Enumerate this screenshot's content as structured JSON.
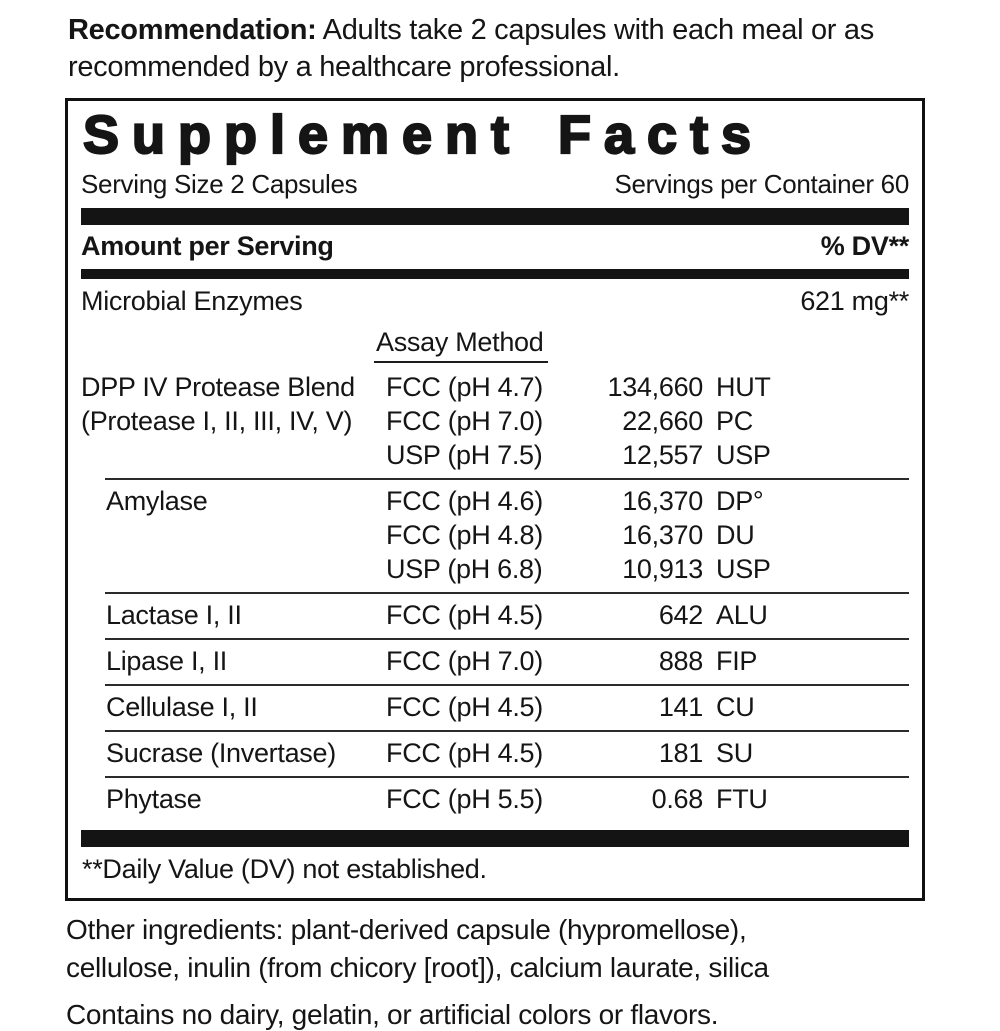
{
  "recommendation": {
    "label": "Recommendation:",
    "text": "Adults take 2 capsules with each meal or as\nrecommended by a healthcare professional."
  },
  "panel": {
    "title": "Supplement Facts",
    "serving_size": "Serving Size 2 Capsules",
    "servings_per_container": "Servings per Container 60",
    "amount_header": "Amount per Serving",
    "dv_header": "% DV**",
    "total": {
      "name": "Microbial Enzymes",
      "amount": "621 mg**"
    },
    "assay_header": "Assay Method",
    "groups": [
      {
        "name": "DPP IV Protease Blend\n(Protease I, II, III, IV, V)",
        "rows": [
          {
            "method": "FCC (pH 4.7)",
            "value": "134,660",
            "unit": "HUT"
          },
          {
            "method": "FCC (pH 7.0)",
            "value": "22,660",
            "unit": "PC"
          },
          {
            "method": "USP (pH 7.5)",
            "value": "12,557",
            "unit": "USP"
          }
        ]
      },
      {
        "name": "Amylase",
        "rows": [
          {
            "method": "FCC (pH 4.6)",
            "value": "16,370",
            "unit": "DP°"
          },
          {
            "method": "FCC (pH 4.8)",
            "value": "16,370",
            "unit": "DU"
          },
          {
            "method": "USP (pH 6.8)",
            "value": "10,913",
            "unit": "USP"
          }
        ]
      },
      {
        "name": "Lactase I, II",
        "rows": [
          {
            "method": "FCC (pH 4.5)",
            "value": "642",
            "unit": "ALU"
          }
        ]
      },
      {
        "name": "Lipase I, II",
        "rows": [
          {
            "method": "FCC (pH 7.0)",
            "value": "888",
            "unit": "FIP"
          }
        ]
      },
      {
        "name": "Cellulase I, II",
        "rows": [
          {
            "method": "FCC (pH 4.5)",
            "value": "141",
            "unit": "CU"
          }
        ]
      },
      {
        "name": "Sucrase (Invertase)",
        "rows": [
          {
            "method": "FCC (pH 4.5)",
            "value": "181",
            "unit": "SU"
          }
        ]
      },
      {
        "name": "Phytase",
        "rows": [
          {
            "method": "FCC (pH 5.5)",
            "value": "0.68",
            "unit": "FTU"
          }
        ]
      }
    ],
    "footnote": "**Daily Value (DV) not established."
  },
  "other_ingredients": "Other ingredients: plant-derived capsule (hypromellose),\ncellulose, inulin (from chicory [root]), calcium laurate, silica",
  "contains": "Contains no dairy, gelatin, or artificial colors or flavors."
}
